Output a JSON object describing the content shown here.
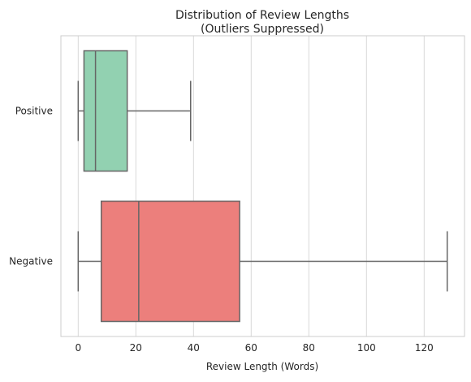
{
  "chart_data": {
    "type": "boxplot",
    "orientation": "horizontal",
    "title": [
      "Distribution of Review Lengths",
      "(Outliers Suppressed)"
    ],
    "xlabel": "Review Length (Words)",
    "ylabel": "",
    "xlim": [
      -6,
      134
    ],
    "xticks": [
      0,
      20,
      40,
      60,
      80,
      100,
      120
    ],
    "grid": "vertical",
    "categories": [
      "Positive",
      "Negative"
    ],
    "boxes": [
      {
        "category": "Positive",
        "min": 0,
        "q1": 2,
        "median": 6,
        "q3": 17,
        "max": 39,
        "color": "#92d1b1"
      },
      {
        "category": "Negative",
        "min": 0,
        "q1": 8,
        "median": 21,
        "q3": 56,
        "max": 128,
        "color": "#ec7f7c"
      }
    ],
    "line_color": "#666666",
    "grid_color": "#d9d9d9"
  }
}
